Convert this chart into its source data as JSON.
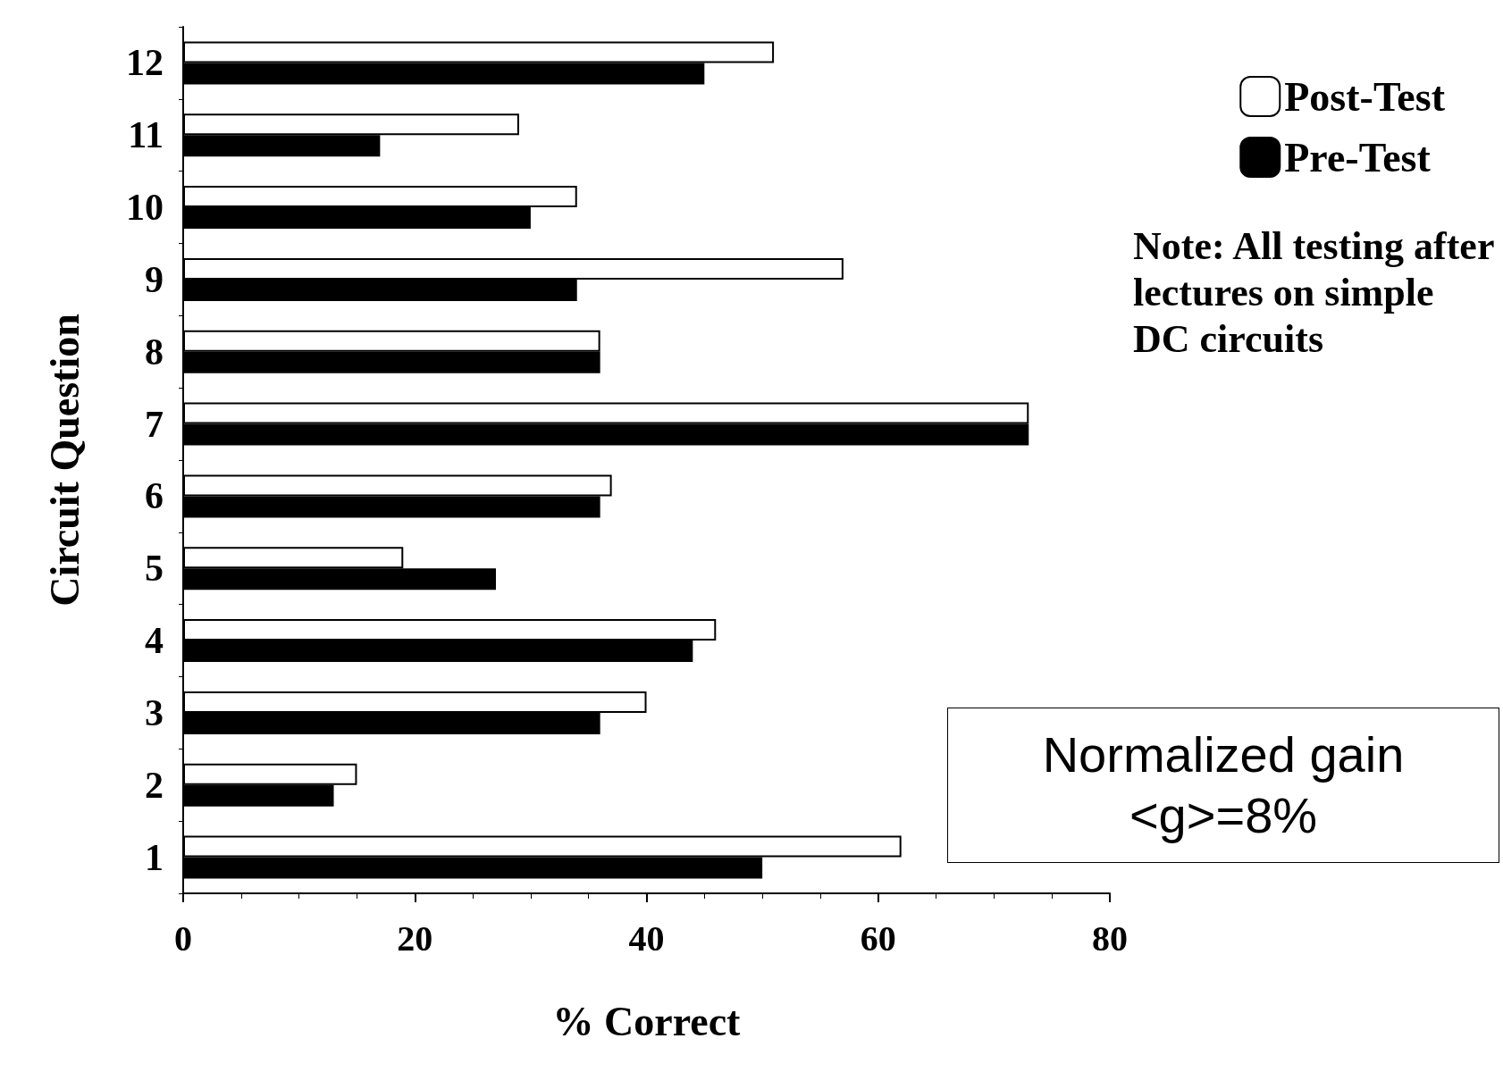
{
  "chart_data": {
    "type": "bar",
    "orientation": "horizontal",
    "xlabel": "% Correct",
    "ylabel": "Circuit Question",
    "categories": [
      "12",
      "11",
      "10",
      "9",
      "8",
      "7",
      "6",
      "5",
      "4",
      "3",
      "2",
      "1"
    ],
    "series": [
      {
        "name": "Post-Test",
        "color": "#ffffff",
        "values": [
          51,
          29,
          34,
          57,
          36,
          73,
          37,
          19,
          46,
          40,
          15,
          62
        ]
      },
      {
        "name": "Pre-Test",
        "color": "#000000",
        "values": [
          45,
          17,
          30,
          34,
          36,
          73,
          36,
          27,
          44,
          36,
          13,
          50
        ]
      }
    ],
    "xlim": [
      0,
      80
    ],
    "xticks": [
      0,
      20,
      40,
      60,
      80
    ],
    "grid": false,
    "legend": "top right",
    "annotations": [
      "Note: All testing after lectures on simple DC circuits",
      "Normalized gain <g>=8%"
    ]
  }
}
